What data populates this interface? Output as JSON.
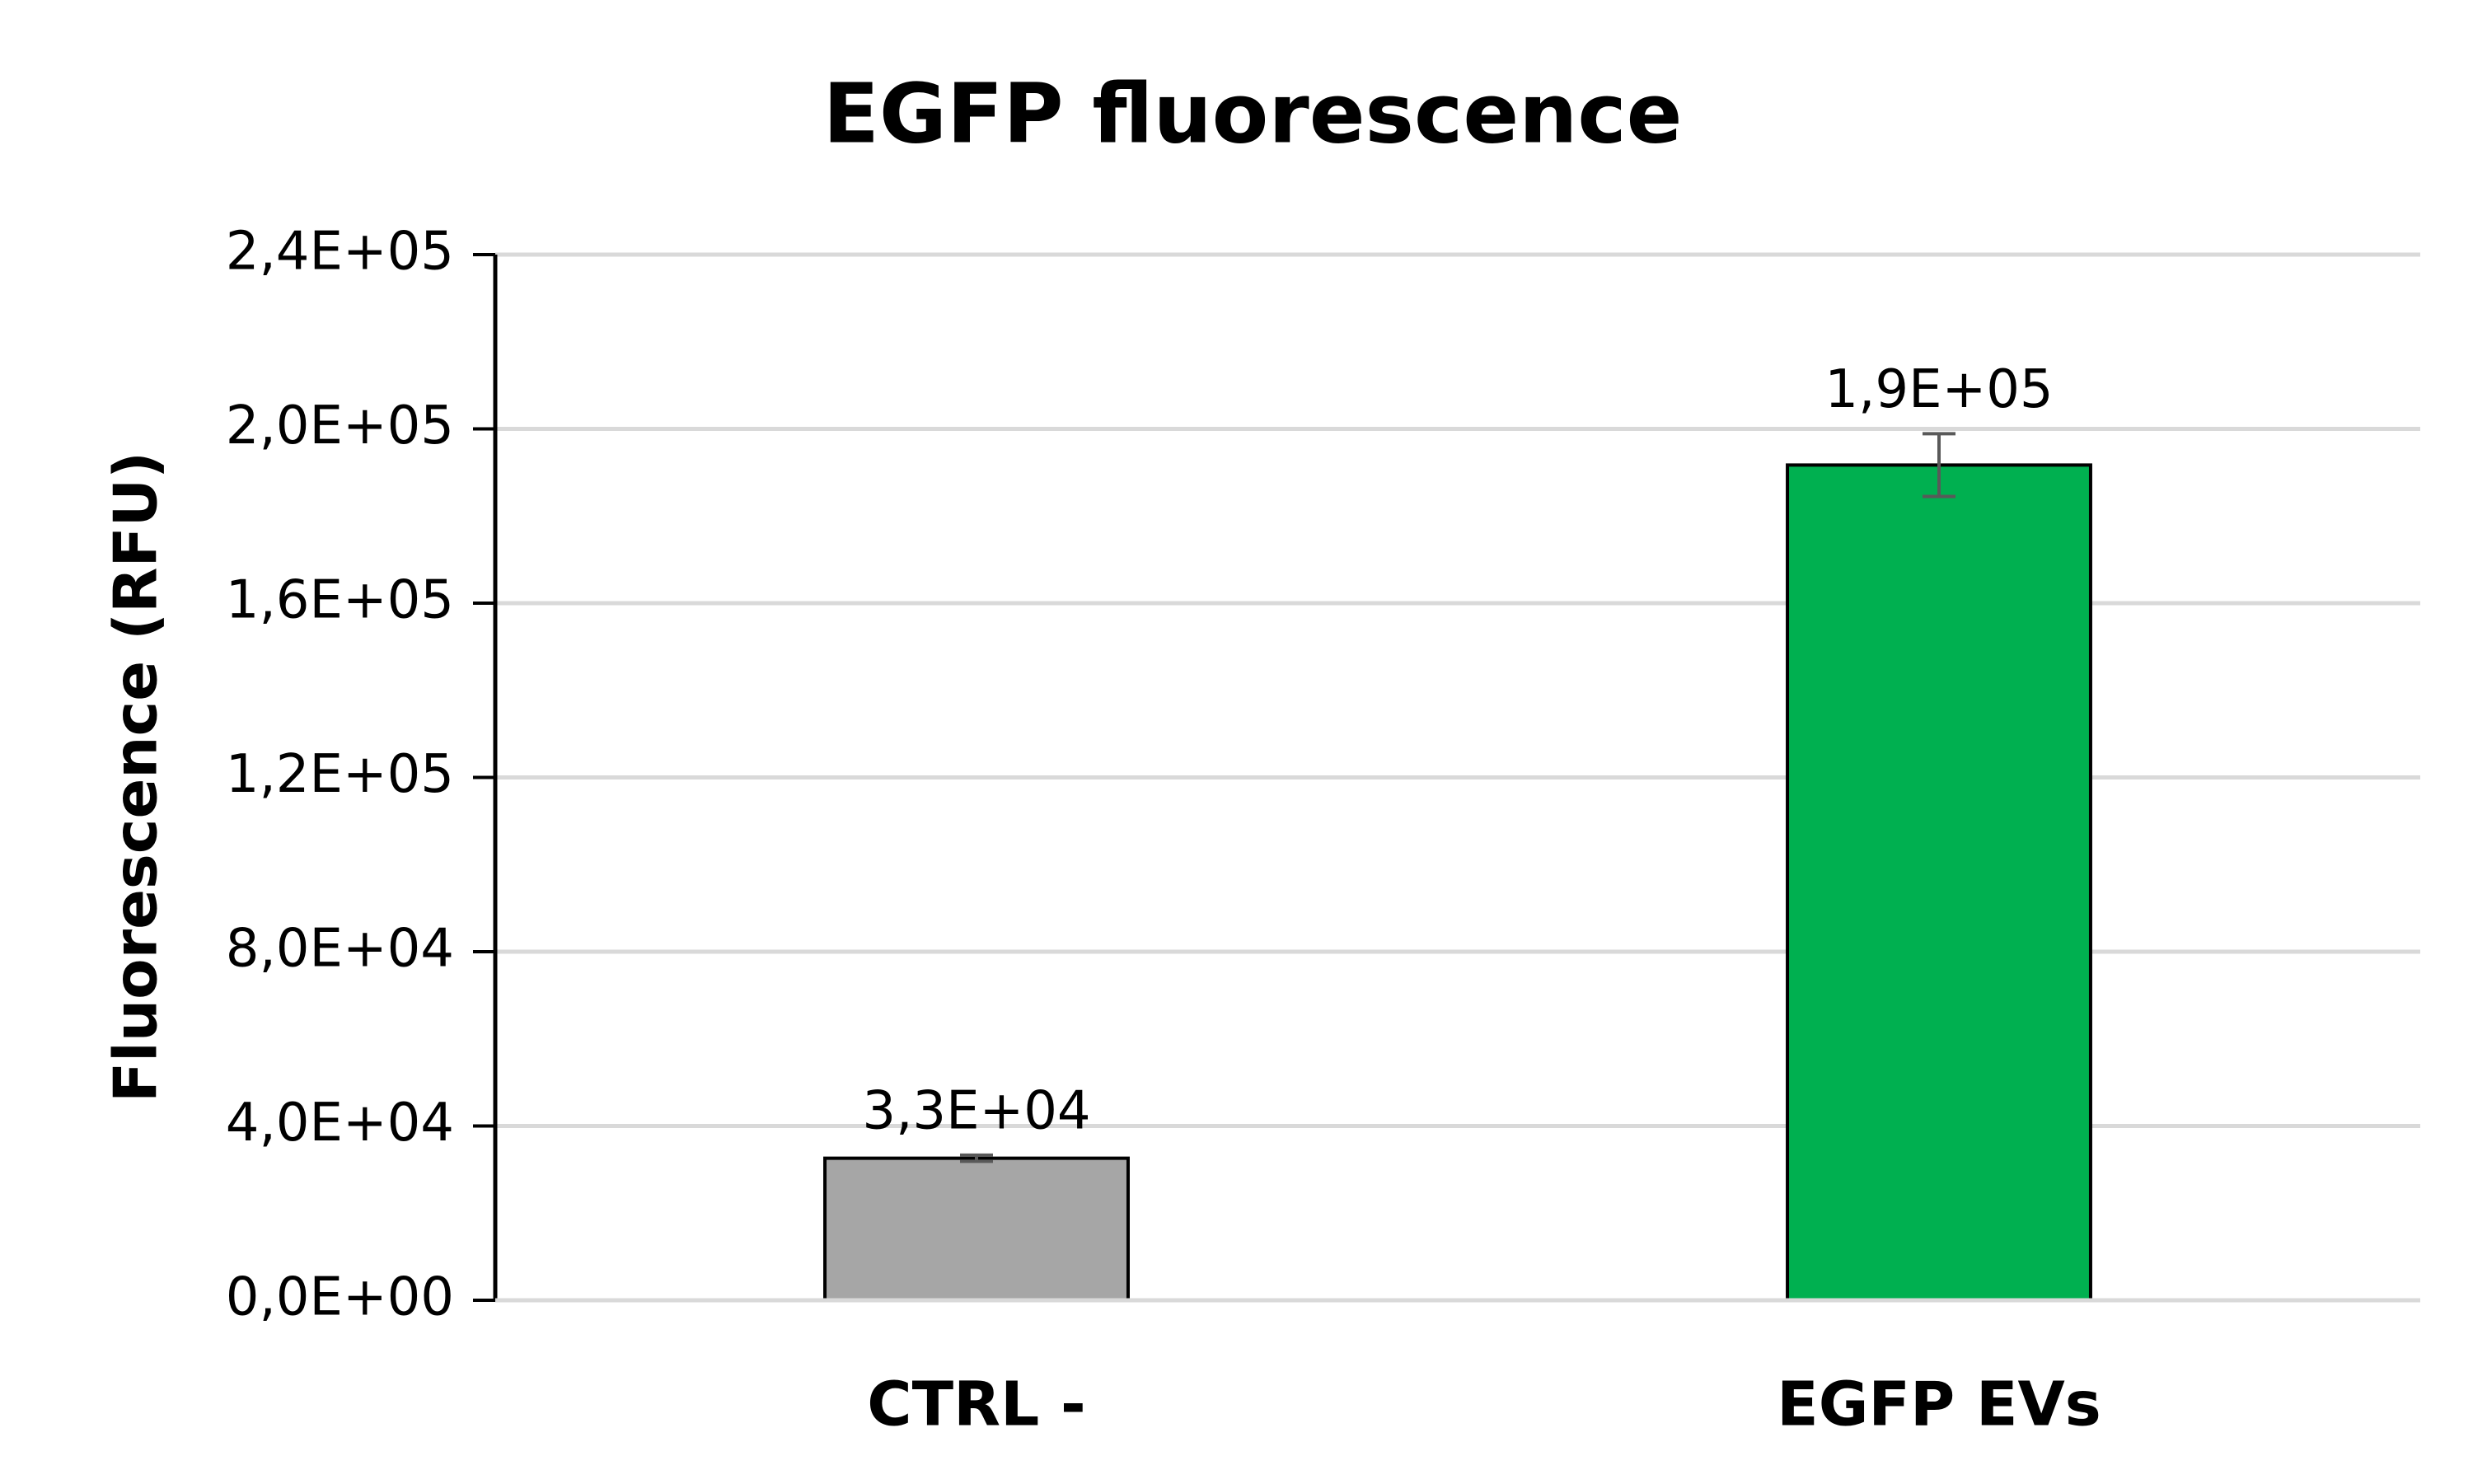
{
  "chart_data": {
    "type": "bar",
    "title": "EGFP fluorescence",
    "y_label": "Fluorescence (RFU)",
    "categories": [
      "CTRL -",
      "EGFP EVs"
    ],
    "values": [
      32600,
      191700
    ],
    "value_labels": [
      "3,3E+04",
      "1,9E+05"
    ],
    "errors": [
      700,
      7200
    ],
    "colors": [
      "#a6a6a6",
      "#00b050"
    ],
    "ylim": [
      0,
      240000
    ],
    "yticks": [
      {
        "value": 0,
        "label": "0,0E+00"
      },
      {
        "value": 40000,
        "label": "4,0E+04"
      },
      {
        "value": 80000,
        "label": "8,0E+04"
      },
      {
        "value": 120000,
        "label": "1,2E+05"
      },
      {
        "value": 160000,
        "label": "1,6E+05"
      },
      {
        "value": 200000,
        "label": "2,0E+05"
      },
      {
        "value": 240000,
        "label": "2,4E+05"
      }
    ],
    "grid": true
  }
}
